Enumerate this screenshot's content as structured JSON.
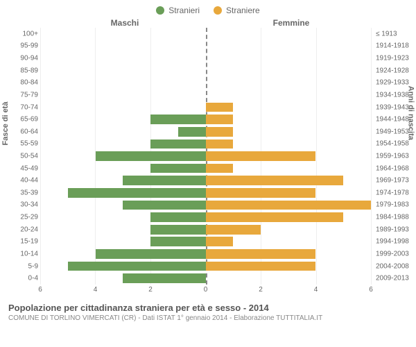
{
  "legend": {
    "male": {
      "label": "Stranieri",
      "color": "#6a9e58"
    },
    "female": {
      "label": "Straniere",
      "color": "#e8a83c"
    }
  },
  "headers": {
    "left": "Maschi",
    "right": "Femmine"
  },
  "axis_titles": {
    "left": "Fasce di età",
    "right": "Anni di nascita"
  },
  "chart": {
    "type": "population-pyramid",
    "xlim": [
      0,
      6
    ],
    "xticks": [
      0,
      2,
      4,
      6
    ],
    "male_color": "#6a9e58",
    "female_color": "#e8a83c",
    "grid_color": "#eeeeee",
    "center_line_color": "#888888",
    "bar_height_ratio": 0.78,
    "background_color": "#ffffff",
    "label_fontsize": 10,
    "rows": [
      {
        "age": "100+",
        "birth": "≤ 1913",
        "male": 0,
        "female": 0
      },
      {
        "age": "95-99",
        "birth": "1914-1918",
        "male": 0,
        "female": 0
      },
      {
        "age": "90-94",
        "birth": "1919-1923",
        "male": 0,
        "female": 0
      },
      {
        "age": "85-89",
        "birth": "1924-1928",
        "male": 0,
        "female": 0
      },
      {
        "age": "80-84",
        "birth": "1929-1933",
        "male": 0,
        "female": 0
      },
      {
        "age": "75-79",
        "birth": "1934-1938",
        "male": 0,
        "female": 0
      },
      {
        "age": "70-74",
        "birth": "1939-1943",
        "male": 0,
        "female": 1
      },
      {
        "age": "65-69",
        "birth": "1944-1948",
        "male": 2,
        "female": 1
      },
      {
        "age": "60-64",
        "birth": "1949-1953",
        "male": 1,
        "female": 1
      },
      {
        "age": "55-59",
        "birth": "1954-1958",
        "male": 2,
        "female": 1
      },
      {
        "age": "50-54",
        "birth": "1959-1963",
        "male": 4,
        "female": 4
      },
      {
        "age": "45-49",
        "birth": "1964-1968",
        "male": 2,
        "female": 1
      },
      {
        "age": "40-44",
        "birth": "1969-1973",
        "male": 3,
        "female": 5
      },
      {
        "age": "35-39",
        "birth": "1974-1978",
        "male": 5,
        "female": 4
      },
      {
        "age": "30-34",
        "birth": "1979-1983",
        "male": 3,
        "female": 6
      },
      {
        "age": "25-29",
        "birth": "1984-1988",
        "male": 2,
        "female": 5
      },
      {
        "age": "20-24",
        "birth": "1989-1993",
        "male": 2,
        "female": 2
      },
      {
        "age": "15-19",
        "birth": "1994-1998",
        "male": 2,
        "female": 1
      },
      {
        "age": "10-14",
        "birth": "1999-2003",
        "male": 4,
        "female": 4
      },
      {
        "age": "5-9",
        "birth": "2004-2008",
        "male": 5,
        "female": 4
      },
      {
        "age": "0-4",
        "birth": "2009-2013",
        "male": 3,
        "female": 0
      }
    ]
  },
  "footer": {
    "title": "Popolazione per cittadinanza straniera per età e sesso - 2014",
    "subtitle": "COMUNE DI TORLINO VIMERCATI (CR) - Dati ISTAT 1° gennaio 2014 - Elaborazione TUTTITALIA.IT"
  }
}
